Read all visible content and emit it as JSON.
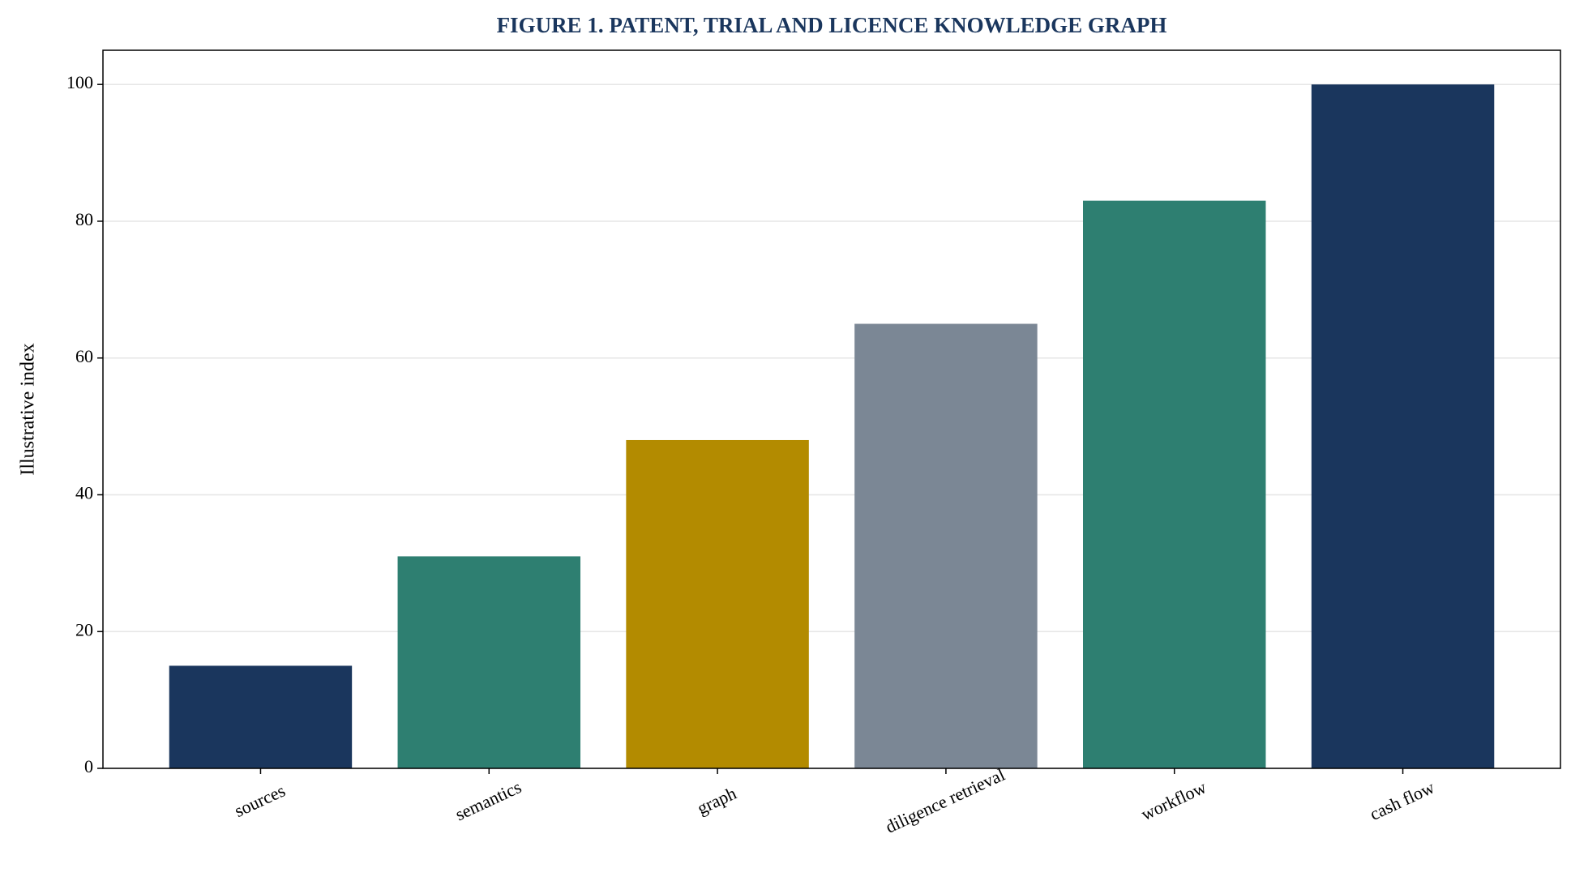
{
  "chart_data": {
    "type": "bar",
    "title": "FIGURE 1. PATENT, TRIAL AND LICENCE KNOWLEDGE GRAPH",
    "y_label": "Illustrative index",
    "categories": [
      "sources",
      "semantics",
      "graph",
      "diligence retrieval",
      "workflow",
      "cash flow"
    ],
    "values": [
      15,
      31,
      48,
      65,
      83,
      100
    ],
    "colors": [
      "#1a365d",
      "#2e7f71",
      "#b38b00",
      "#7b8795",
      "#2e7f71",
      "#1a365d"
    ],
    "ylim": [
      0,
      105
    ],
    "yticks": [
      0,
      20,
      40,
      60,
      80,
      100
    ],
    "grid": true
  }
}
